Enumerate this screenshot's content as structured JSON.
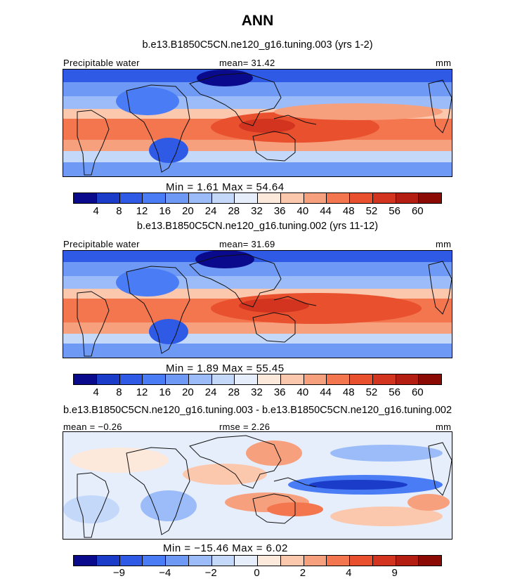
{
  "title": "ANN",
  "panels": [
    {
      "case": "b.e13.B1850C5CN.ne120_g16.tuning.003 (yrs 1-2)",
      "field_label": "Precipitable water",
      "mean_text": "mean=  31.42",
      "units": "mm",
      "minmax_text": "Min  =    1.61  Max  =   54.64"
    },
    {
      "case": "b.e13.B1850C5CN.ne120_g16.tuning.002 (yrs 11-12)",
      "field_label": "Precipitable water",
      "mean_text": "mean=  31.69",
      "units": "mm",
      "minmax_text": "Min  =    1.89  Max  =   55.45"
    },
    {
      "case": "b.e13.B1850C5CN.ne120_g16.tuning.003 - b.e13.B1850C5CN.ne120_g16.tuning.002",
      "field_label": "mean =  −0.26",
      "mean_text": "rmse =   2.26",
      "units": "mm",
      "minmax_text": "Min  = −15.46  Max  =    6.02"
    }
  ],
  "colorbar_abs": {
    "colors": [
      "#0a0a8c",
      "#1a3cc8",
      "#2e5ae6",
      "#4a7cf5",
      "#6e9af5",
      "#9bbcf8",
      "#c4d8fa",
      "#e6eefc",
      "#fde9dc",
      "#fbc8ae",
      "#f7a07e",
      "#f3764f",
      "#e8502e",
      "#d2341f",
      "#b41e12",
      "#8b0a04"
    ],
    "tick_labels": [
      "4",
      "8",
      "12",
      "16",
      "20",
      "24",
      "28",
      "32",
      "36",
      "40",
      "44",
      "48",
      "52",
      "56",
      "60"
    ]
  },
  "colorbar_diff": {
    "colors": [
      "#0a0a8c",
      "#1a3cc8",
      "#2e5ae6",
      "#4a7cf5",
      "#6e9af5",
      "#9bbcf8",
      "#c4d8fa",
      "#e6eefc",
      "#fde9dc",
      "#fbc8ae",
      "#f7a07e",
      "#f3764f",
      "#e8502e",
      "#d2341f",
      "#b41e12",
      "#8b0a04"
    ],
    "tick_labels": [
      "−9",
      "−4",
      "−2",
      "0",
      "2",
      "4",
      "9"
    ]
  }
}
